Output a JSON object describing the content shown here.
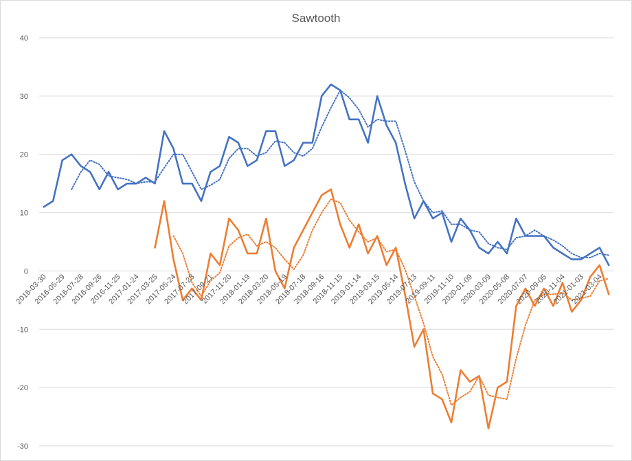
{
  "chart_data": {
    "type": "line",
    "title": "Sawtooth",
    "xlabel": "",
    "ylabel": "",
    "ylim": [
      -30,
      40
    ],
    "yticks": [
      -30,
      -20,
      -10,
      0,
      10,
      20,
      30,
      40
    ],
    "grid": true,
    "legend": "none",
    "x_tick_labels": [
      "2016-03-30",
      "2016-05-29",
      "2016-07-28",
      "2016-09-26",
      "2016-11-25",
      "2017-01-24",
      "2017-03-25",
      "2017-05-24",
      "2017-07-23",
      "2017-09-21",
      "2017-11-20",
      "2018-01-19",
      "2018-03-20",
      "2018-05-19",
      "2018-07-18",
      "2018-09-16",
      "2018-11-15",
      "2019-01-14",
      "2019-03-15",
      "2019-05-14",
      "2019-07-13",
      "2019-09-11",
      "2019-11-10",
      "2020-01-09",
      "2020-03-09",
      "2020-05-08",
      "2020-07-07",
      "2020-09-05",
      "2020-11-04",
      "2021-01-03",
      "2021-03-04"
    ],
    "series": [
      {
        "color": "#4472C4",
        "style": "solid",
        "values": [
          11,
          12,
          19,
          20,
          18,
          17,
          14,
          17,
          14,
          15,
          15,
          16,
          15,
          24,
          21,
          15,
          15,
          12,
          17,
          18,
          23,
          22,
          18,
          19,
          24,
          24,
          18,
          19,
          22,
          22,
          30,
          32,
          31,
          26,
          26,
          22,
          30,
          25,
          22,
          15,
          9,
          12,
          9,
          10,
          5,
          9,
          7,
          4,
          3,
          5,
          3,
          9,
          6,
          6,
          6,
          4,
          3,
          2,
          2,
          3,
          4,
          1
        ]
      },
      {
        "color": "#4472C4",
        "style": "dotted",
        "values": [
          null,
          null,
          null,
          14,
          17,
          19,
          18.3,
          16.3,
          16,
          15.7,
          15,
          15.3,
          15.3,
          17.7,
          20,
          20,
          17,
          14,
          14.7,
          15.7,
          19.3,
          21,
          21,
          19.7,
          20.3,
          22.3,
          22,
          20.3,
          19.7,
          21,
          24.7,
          28,
          31,
          29.7,
          27.7,
          24.7,
          26,
          25.7,
          25.7,
          20.7,
          15.3,
          12,
          10,
          10.3,
          8,
          8,
          7,
          6.7,
          4.7,
          4,
          3.7,
          5.7,
          6,
          7,
          6,
          5.3,
          4.3,
          3,
          2.3,
          2.3,
          3,
          2.7
        ]
      },
      {
        "color": "#ED7D31",
        "style": "solid",
        "values": [
          null,
          null,
          null,
          null,
          null,
          null,
          null,
          null,
          null,
          null,
          null,
          null,
          4,
          12,
          2,
          -5,
          -3,
          -5,
          3,
          1,
          9,
          7,
          3,
          3,
          9,
          0,
          -3,
          4,
          7,
          10,
          13,
          14,
          8,
          4,
          8,
          3,
          6,
          1,
          4,
          -4,
          -13,
          -10,
          -21,
          -22,
          -26,
          -17,
          -19,
          -18,
          -27,
          -20,
          -19,
          -6,
          -3,
          -6,
          -3,
          -6,
          -2,
          -7,
          -5,
          -1,
          1,
          -4
        ]
      },
      {
        "color": "#ED7D31",
        "style": "dotted",
        "values": [
          null,
          null,
          null,
          null,
          null,
          null,
          null,
          null,
          null,
          null,
          null,
          null,
          null,
          null,
          6,
          3,
          -2,
          -4.3,
          -1.7,
          -0.3,
          4.3,
          5.7,
          6.3,
          4.3,
          5,
          4,
          2,
          0.3,
          2.7,
          7,
          10,
          12.3,
          11.7,
          8.7,
          6.7,
          5,
          5.7,
          3.3,
          3.7,
          0.3,
          -4.3,
          -9,
          -14.7,
          -17.7,
          -23,
          -21.7,
          -20.7,
          -18,
          -21.3,
          -21.7,
          -22,
          -15,
          -9.3,
          -5,
          -4,
          -4,
          -3.7,
          -5,
          -4.7,
          -4.3,
          -1.7,
          -1.3
        ]
      }
    ]
  }
}
